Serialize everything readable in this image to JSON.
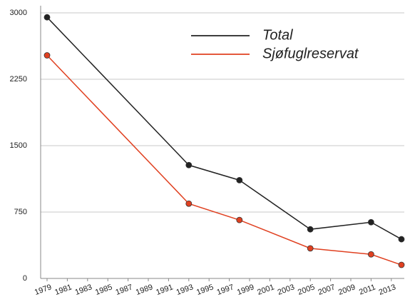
{
  "chart_data": {
    "type": "line",
    "x": [
      1979,
      1993,
      1998,
      2005,
      2011,
      2014
    ],
    "series": [
      {
        "name": "Total",
        "color": "#222222",
        "values": [
          2950,
          1280,
          1110,
          555,
          635,
          443
        ]
      },
      {
        "name": "Sjøfuglreservat",
        "color": "#e04020",
        "values": [
          2520,
          845,
          660,
          340,
          272,
          153
        ]
      }
    ],
    "xlim": [
      1979,
      2014
    ],
    "xticks": [
      1979,
      1981,
      1983,
      1985,
      1987,
      1989,
      1991,
      1993,
      1995,
      1997,
      1999,
      2001,
      2003,
      2005,
      2007,
      2009,
      2011,
      2013
    ],
    "ylim": [
      0,
      3000
    ],
    "yticks": [
      0,
      750,
      1500,
      2250,
      3000
    ],
    "grid": true,
    "legend": "upper right"
  }
}
